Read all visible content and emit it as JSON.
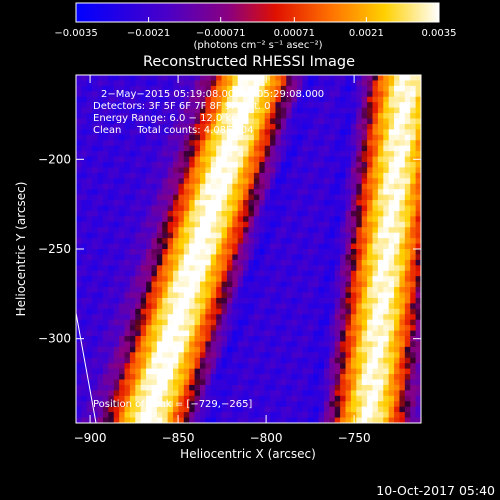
{
  "chart_data": {
    "type": "heatmap",
    "title": "Reconstructed RHESSI Image",
    "xlabel": "Heliocentric X (arcsec)",
    "ylabel": "Heliocentric Y (arcsec)",
    "xlim": [
      -908,
      -712
    ],
    "ylim": [
      -347,
      -153
    ],
    "xticks": [
      -900,
      -850,
      -800,
      -750
    ],
    "xtick_labels": [
      "−900",
      "−850",
      "−800",
      "−750"
    ],
    "yticks": [
      -200,
      -250,
      -300
    ],
    "ytick_labels": [
      "−200",
      "−250",
      "−300"
    ],
    "colorbar": {
      "min": -0.0035,
      "max": 0.0035,
      "ticks": [
        -0.0035,
        -0.0021,
        -0.00071,
        0.00071,
        0.0021,
        0.0035
      ],
      "tick_labels": [
        "−0.0035",
        "−0.0021",
        "−0.00071",
        "0.00071",
        "0.0021",
        "0.0035"
      ],
      "units_label": "(photons cm⁻² s⁻¹ asec⁻²)",
      "colormap": "blue-purple-red-yellow-white"
    },
    "info_lines": [
      "2−May−2015 05:19:08.000 to 05:29:08.000",
      "Detectors: 3F 5F 6F 7F 8F 9F, Att. 0",
      "Energy Range: 6.0 − 12.0 keV",
      "Clean     Total counts: 4.08E+04"
    ],
    "peak_label": "Position of Peak = [−729,−265]",
    "peak": [
      -729,
      -265
    ],
    "limb_visible": true,
    "bright_ridges": [
      {
        "x_at_bottom": -868,
        "x_at_top": -808
      },
      {
        "x_at_bottom": -742,
        "x_at_top": -720
      }
    ]
  },
  "footer": {
    "timestamp": "10-Oct-2017 05:40"
  },
  "colors": {
    "background": "#000000",
    "text": "#ffffff"
  }
}
